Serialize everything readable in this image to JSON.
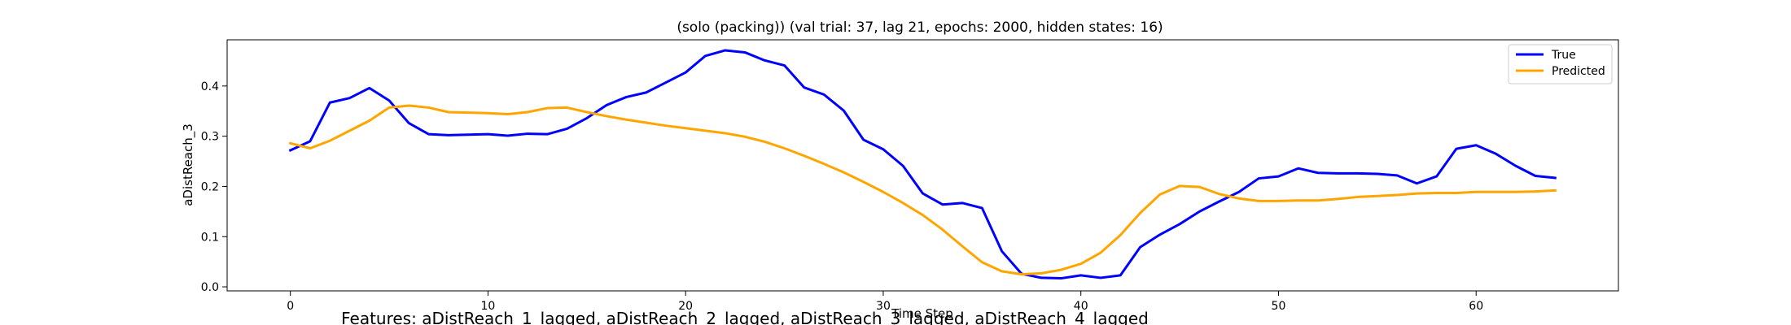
{
  "chart_data": {
    "type": "line",
    "title": "(solo (packing)) (val trial: 37, lag 21, epochs: 2000, hidden states: 16)",
    "xlabel": "Time Step",
    "ylabel": "aDistReach_3",
    "caption": "Features: aDistReach_1_lagged, aDistReach_2_lagged, aDistReach_3_lagged, aDistReach_4_lagged",
    "xlim": [
      -3.2,
      67.2
    ],
    "ylim": [
      -0.008,
      0.492
    ],
    "xticks": [
      0,
      10,
      20,
      30,
      40,
      50,
      60
    ],
    "yticks": [
      0.0,
      0.1,
      0.2,
      0.3,
      0.4
    ],
    "ytick_labels": [
      "0.0",
      "0.1",
      "0.2",
      "0.3",
      "0.4"
    ],
    "grid": false,
    "legend_position": "top-right",
    "series": [
      {
        "name": "True",
        "color": "#0000ff",
        "values": [
          0.272,
          0.29,
          0.367,
          0.376,
          0.396,
          0.371,
          0.326,
          0.304,
          0.302,
          0.303,
          0.304,
          0.301,
          0.305,
          0.304,
          0.315,
          0.336,
          0.362,
          0.378,
          0.387,
          0.407,
          0.427,
          0.46,
          0.471,
          0.467,
          0.451,
          0.441,
          0.397,
          0.383,
          0.351,
          0.293,
          0.274,
          0.241,
          0.186,
          0.164,
          0.167,
          0.157,
          0.071,
          0.026,
          0.018,
          0.017,
          0.023,
          0.018,
          0.023,
          0.079,
          0.104,
          0.125,
          0.15,
          0.17,
          0.189,
          0.216,
          0.22,
          0.236,
          0.227,
          0.226,
          0.226,
          0.225,
          0.222,
          0.206,
          0.22,
          0.275,
          0.282,
          0.265,
          0.241,
          0.221,
          0.217
        ]
      },
      {
        "name": "Predicted",
        "color": "#ffa500",
        "values": [
          0.286,
          0.276,
          0.291,
          0.311,
          0.331,
          0.357,
          0.361,
          0.357,
          0.348,
          0.347,
          0.346,
          0.344,
          0.348,
          0.356,
          0.357,
          0.348,
          0.34,
          0.333,
          0.327,
          0.321,
          0.316,
          0.311,
          0.306,
          0.299,
          0.289,
          0.276,
          0.261,
          0.245,
          0.228,
          0.209,
          0.189,
          0.167,
          0.143,
          0.114,
          0.081,
          0.049,
          0.031,
          0.025,
          0.027,
          0.034,
          0.046,
          0.068,
          0.103,
          0.147,
          0.184,
          0.201,
          0.199,
          0.185,
          0.176,
          0.171,
          0.171,
          0.172,
          0.172,
          0.175,
          0.179,
          0.181,
          0.183,
          0.186,
          0.187,
          0.187,
          0.189,
          0.189,
          0.189,
          0.19,
          0.192
        ]
      }
    ]
  }
}
